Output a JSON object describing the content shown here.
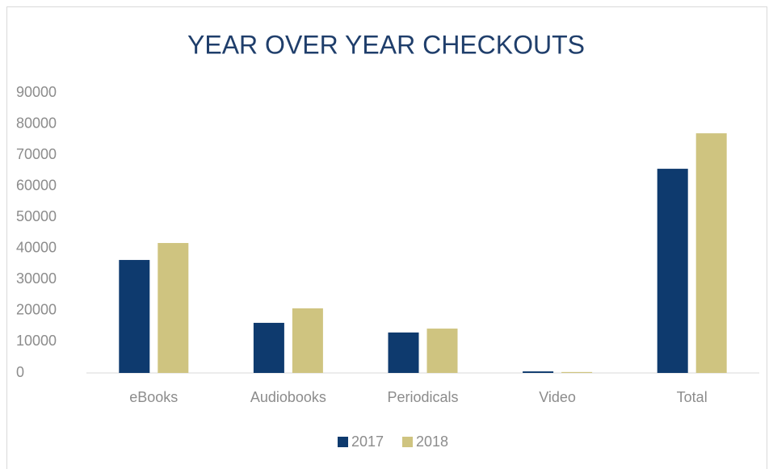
{
  "chart_data": {
    "type": "bar",
    "title": "YEAR OVER YEAR CHECKOUTS",
    "categories": [
      "eBooks",
      "Audiobooks",
      "Periodicals",
      "Video",
      "Total"
    ],
    "series": [
      {
        "name": "2017",
        "color": "#0e3a6e",
        "values": [
          36300,
          16100,
          13000,
          500,
          65600
        ]
      },
      {
        "name": "2018",
        "color": "#cfc480",
        "values": [
          41750,
          20750,
          14250,
          300,
          77000
        ]
      }
    ],
    "ylim": [
      0,
      90000
    ],
    "yticks": [
      0,
      10000,
      20000,
      30000,
      40000,
      50000,
      60000,
      70000,
      80000,
      90000
    ],
    "grid": false,
    "legend": "bottom"
  }
}
